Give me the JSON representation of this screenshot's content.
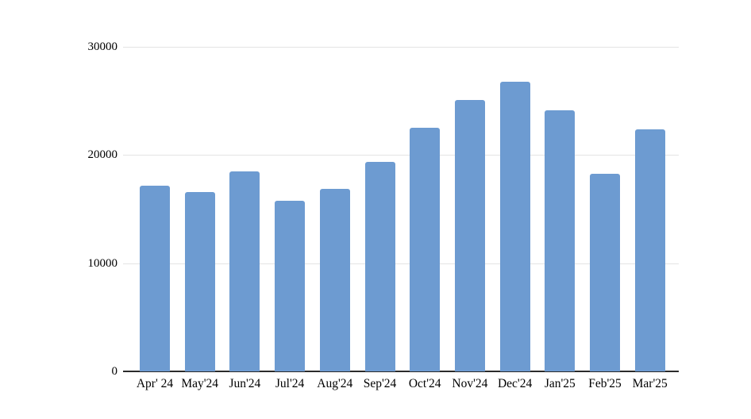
{
  "chart_data": {
    "type": "bar",
    "categories": [
      "Apr' 24",
      "May'24",
      "Jun'24",
      "Jul'24",
      "Aug'24",
      "Sep'24",
      "Oct'24",
      "Nov'24",
      "Dec'24",
      "Jan'25",
      "Feb'25",
      "Mar'25"
    ],
    "values": [
      17200,
      16600,
      18500,
      15800,
      16900,
      19400,
      22500,
      25100,
      26800,
      24100,
      18300,
      22400
    ],
    "title": "",
    "xlabel": "",
    "ylabel": "",
    "ylim": [
      0,
      30000
    ],
    "yticks": [
      0,
      10000,
      20000,
      30000
    ],
    "ytick_labels": [
      "0",
      "10000",
      "20000",
      "30000"
    ],
    "grid": "horizontal",
    "legend": "none",
    "colors": {
      "bar": "#6d9bd1",
      "gridline": "#e3e3e3",
      "axis_line": "#2b2b2b",
      "label_text": "#000000",
      "background": "#ffffff"
    }
  }
}
